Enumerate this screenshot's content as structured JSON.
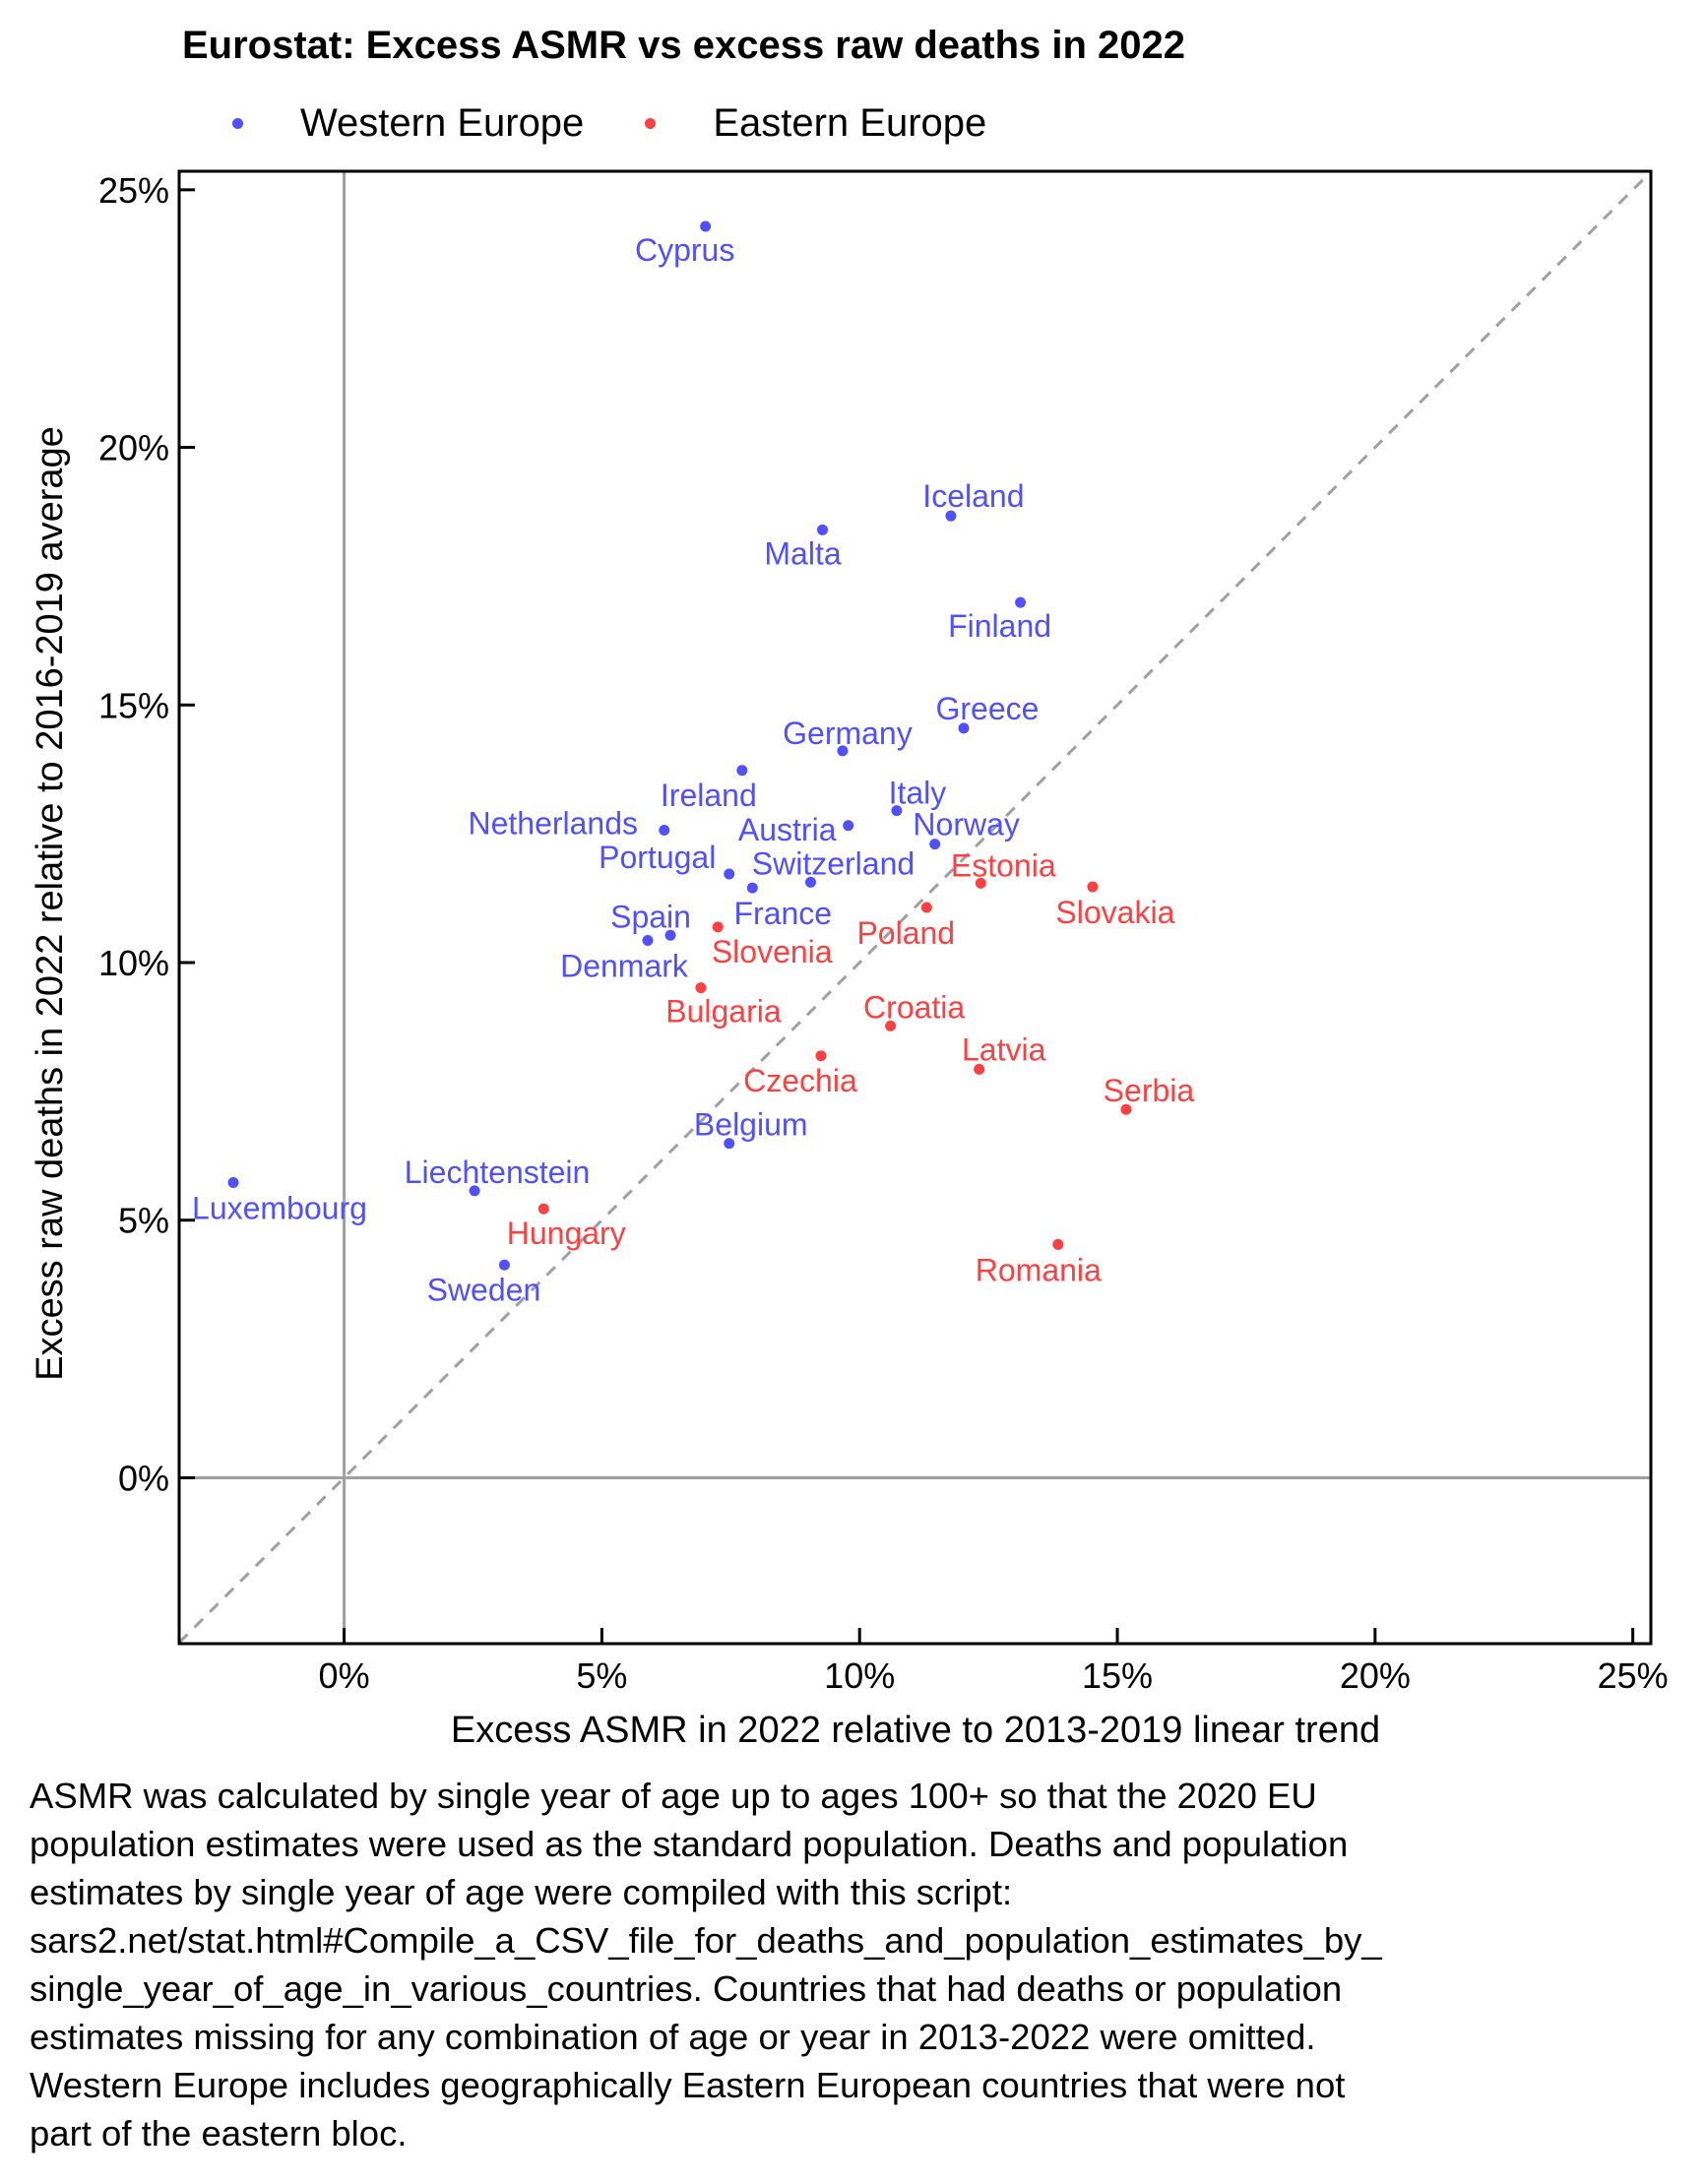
{
  "chart_data": {
    "type": "scatter",
    "title": "Eurostat: Excess ASMR vs excess raw deaths in 2022",
    "xlabel": "Excess ASMR in 2022 relative to 2013-2019 linear trend",
    "ylabel": "Excess raw deaths in 2022 relative to 2016-2019 average",
    "xlim": [
      -3.2,
      25.35
    ],
    "ylim": [
      -3.22,
      25.36
    ],
    "x_ticks": [
      0,
      5,
      10,
      15,
      20,
      25
    ],
    "y_ticks": [
      0,
      5,
      10,
      15,
      20,
      25
    ],
    "x_tick_labels": [
      "0%",
      "5%",
      "10%",
      "15%",
      "20%",
      "25%"
    ],
    "y_tick_labels": [
      "0%",
      "5%",
      "10%",
      "15%",
      "20%",
      "25%"
    ],
    "grid": false,
    "reference_lines": [
      {
        "type": "vertical",
        "value": 0,
        "color": "#a0a0a0"
      },
      {
        "type": "horizontal",
        "value": 0,
        "color": "#a0a0a0"
      },
      {
        "type": "diagonal",
        "slope": 1,
        "intercept": 0,
        "style": "dashed",
        "color": "#a0a0a0"
      }
    ],
    "legend_position": "top-left",
    "series": [
      {
        "name": "Western Europe",
        "color": "#5050ff",
        "points": [
          {
            "label": "Cyprus",
            "x": 7.01,
            "y": 24.29
          },
          {
            "label": "Iceland",
            "x": 11.77,
            "y": 18.67
          },
          {
            "label": "Malta",
            "x": 9.28,
            "y": 18.4
          },
          {
            "label": "Finland",
            "x": 13.12,
            "y": 16.99
          },
          {
            "label": "Greece",
            "x": 12.02,
            "y": 14.55
          },
          {
            "label": "Germany",
            "x": 9.67,
            "y": 14.11
          },
          {
            "label": "Ireland",
            "x": 7.72,
            "y": 13.73
          },
          {
            "label": "Italy",
            "x": 10.72,
            "y": 12.95
          },
          {
            "label": "Austria",
            "x": 9.78,
            "y": 12.66
          },
          {
            "label": "Netherlands",
            "x": 6.21,
            "y": 12.57
          },
          {
            "label": "Norway",
            "x": 11.46,
            "y": 12.3
          },
          {
            "label": "Portugal",
            "x": 7.47,
            "y": 11.72
          },
          {
            "label": "Switzerland",
            "x": 9.05,
            "y": 11.56
          },
          {
            "label": "France",
            "x": 7.92,
            "y": 11.45
          },
          {
            "label": "Spain",
            "x": 6.33,
            "y": 10.53
          },
          {
            "label": "Denmark",
            "x": 5.89,
            "y": 10.43
          },
          {
            "label": "Belgium",
            "x": 7.47,
            "y": 6.49
          },
          {
            "label": "Luxembourg",
            "x": -2.15,
            "y": 5.73
          },
          {
            "label": "Liechtenstein",
            "x": 2.53,
            "y": 5.57
          },
          {
            "label": "Sweden",
            "x": 3.11,
            "y": 4.13
          }
        ]
      },
      {
        "name": "Eastern Europe",
        "color": "#ff4040",
        "points": [
          {
            "label": "Estonia",
            "x": 12.35,
            "y": 11.54
          },
          {
            "label": "Slovakia",
            "x": 14.52,
            "y": 11.47
          },
          {
            "label": "Poland",
            "x": 11.3,
            "y": 11.07
          },
          {
            "label": "Slovenia",
            "x": 7.25,
            "y": 10.69
          },
          {
            "label": "Bulgaria",
            "x": 6.92,
            "y": 9.51
          },
          {
            "label": "Croatia",
            "x": 10.6,
            "y": 8.77
          },
          {
            "label": "Czechia",
            "x": 9.25,
            "y": 8.19
          },
          {
            "label": "Latvia",
            "x": 12.32,
            "y": 7.93
          },
          {
            "label": "Serbia",
            "x": 15.17,
            "y": 7.15
          },
          {
            "label": "Hungary",
            "x": 3.87,
            "y": 5.22
          },
          {
            "label": "Romania",
            "x": 13.85,
            "y": 4.53
          }
        ]
      }
    ]
  },
  "note": "ASMR was calculated by single year of age up to ages 100+ so that the 2020 EU\npopulation estimates were used as the standard population. Deaths and population\nestimates by single year of age were compiled with this script:\nsars2.net/stat.html#Compile_a_CSV_file_for_deaths_and_population_estimates_by_\nsingle_year_of_age_in_various_countries. Countries that had deaths or population\nestimates missing for any combination of age or year in 2013-2022 were omitted.\nWestern Europe includes geographically Eastern European countries that were not\npart of the eastern bloc."
}
